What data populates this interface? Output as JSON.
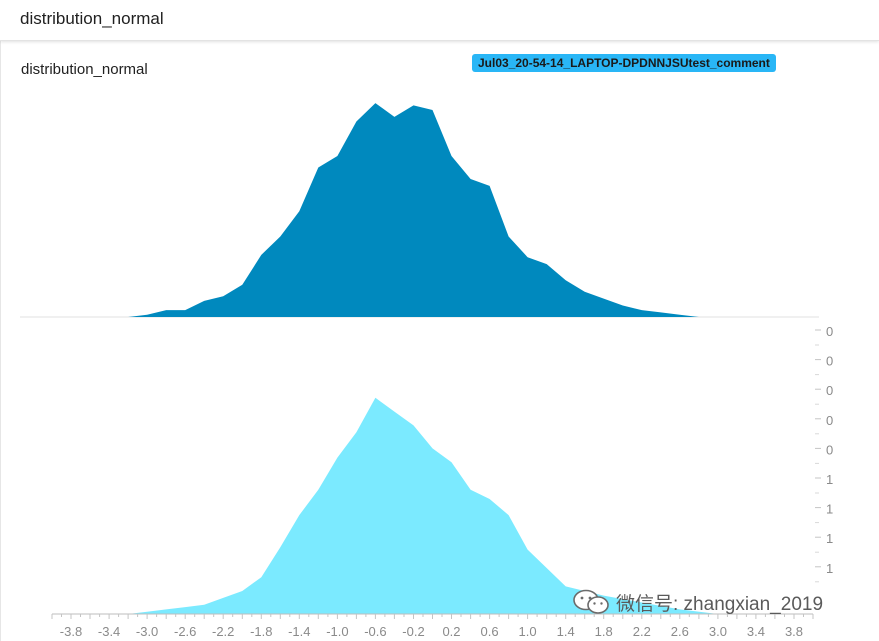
{
  "header": {
    "title": "distribution_normal"
  },
  "card": {
    "title": "distribution_normal",
    "run_tag": "Jul03_20-54-14_LAPTOP-DPDNNJSUtest_comment"
  },
  "colors": {
    "series_0": "#0089be",
    "series_1": "#7beaff",
    "tag": "#29b6f6"
  },
  "chart_data": {
    "type": "area",
    "style": "histogram-offset",
    "xlim": [
      -4.0,
      4.0
    ],
    "x_ticks": [
      "-3.8",
      "-3.4",
      "-3.0",
      "-2.6",
      "-2.2",
      "-1.8",
      "-1.4",
      "-1.0",
      "-0.6",
      "-0.2",
      "0.2",
      "0.6",
      "1.0",
      "1.4",
      "1.8",
      "2.2",
      "2.6",
      "3.0",
      "3.4",
      "3.8"
    ],
    "y_ticks": [
      "0",
      "0",
      "0",
      "0",
      "0",
      "1",
      "1",
      "1",
      "1"
    ],
    "series": [
      {
        "x": [
          -3.2,
          -3.0,
          -2.8,
          -2.6,
          -2.4,
          -2.2,
          -2.0,
          -1.8,
          -1.6,
          -1.4,
          -1.2,
          -1.0,
          -0.8,
          -0.6,
          -0.4,
          -0.2,
          0.0,
          0.2,
          0.4,
          0.6,
          0.8,
          1.0,
          1.2,
          1.4,
          1.6,
          1.8,
          2.0,
          2.2,
          2.4,
          2.6,
          2.8,
          3.0
        ],
        "y": [
          0,
          1,
          3,
          3,
          7,
          9,
          14,
          27,
          35,
          46,
          65,
          70,
          85,
          93,
          87,
          92,
          90,
          70,
          60,
          57,
          35,
          26,
          23,
          16,
          11,
          8,
          5,
          3,
          2,
          1,
          0,
          0
        ]
      },
      {
        "x": [
          -3.4,
          -3.2,
          -3.0,
          -2.8,
          -2.6,
          -2.4,
          -2.2,
          -2.0,
          -1.8,
          -1.6,
          -1.4,
          -1.2,
          -1.0,
          -0.8,
          -0.6,
          -0.4,
          -0.2,
          0.0,
          0.2,
          0.4,
          0.6,
          0.8,
          1.0,
          1.4,
          1.8,
          2.2,
          2.6,
          3.0
        ],
        "y": [
          0,
          0,
          1,
          2,
          3,
          4,
          7,
          10,
          16,
          29,
          43,
          54,
          68,
          79,
          94,
          88,
          82,
          72,
          66,
          54,
          50,
          43,
          28,
          12,
          8,
          5,
          2,
          0
        ]
      }
    ]
  },
  "watermark": {
    "text": "微信号: zhangxian_2019",
    "icon": "wechat-icon"
  }
}
